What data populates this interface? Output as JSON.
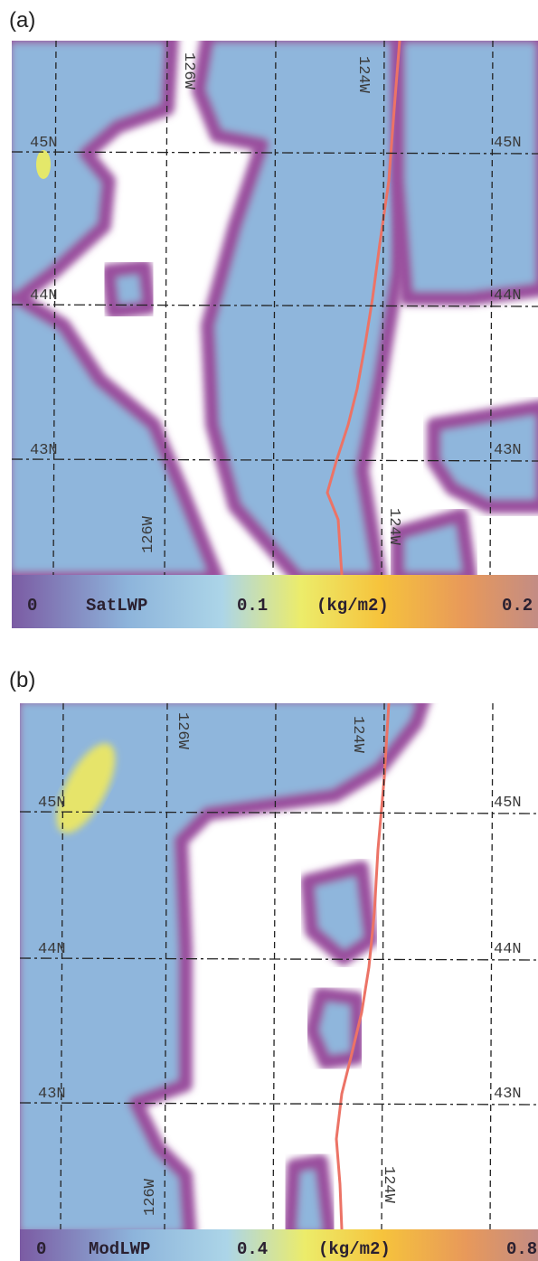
{
  "panels": [
    {
      "label": "(a)",
      "lat_left": [
        "45N",
        "44N",
        "43N"
      ],
      "lat_right": [
        "45N",
        "44N",
        "43N"
      ],
      "lon_top": [
        "126W",
        "124W"
      ],
      "lon_bottom": [
        "126W",
        "124W"
      ],
      "colorbar": {
        "min": "0",
        "name": "SatLWP",
        "mid": "0.1",
        "units": "(kg/m2)",
        "max": "0.2"
      }
    },
    {
      "label": "(b)",
      "lat_left": [
        "45N",
        "44N",
        "43N"
      ],
      "lat_right": [
        "45N",
        "44N",
        "43N"
      ],
      "lon_top": [
        "126W",
        "124W"
      ],
      "lon_bottom": [
        "126W",
        "124W"
      ],
      "colorbar": {
        "min": "0",
        "name": "ModLWP",
        "mid": "0.4",
        "units": "(kg/m2)",
        "max": "0.8"
      }
    }
  ]
}
